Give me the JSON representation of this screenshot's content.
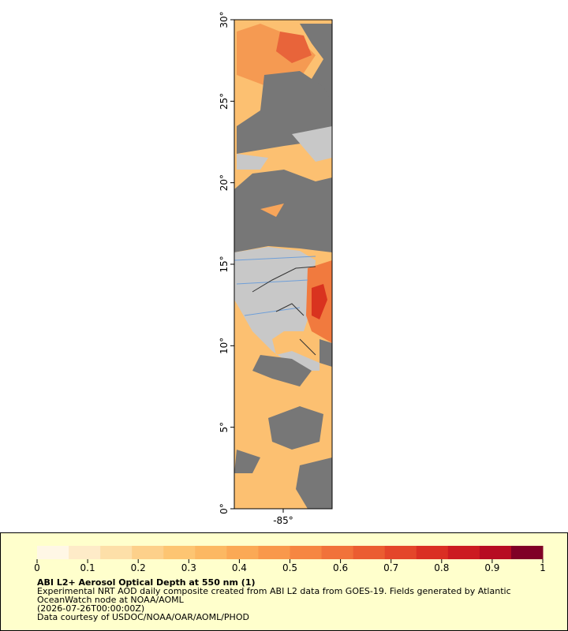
{
  "chart_data": {
    "type": "map",
    "xlim": [
      -88,
      -82
    ],
    "ylim": [
      0,
      30
    ],
    "xticks": [
      {
        "value": -85,
        "label": "-85°"
      }
    ],
    "yticks": [
      {
        "value": 0,
        "label": "0°"
      },
      {
        "value": 5,
        "label": "5°"
      },
      {
        "value": 10,
        "label": "10°"
      },
      {
        "value": 15,
        "label": "15°"
      },
      {
        "value": 20,
        "label": "20°"
      },
      {
        "value": 25,
        "label": "25°"
      },
      {
        "value": 30,
        "label": "30°"
      }
    ],
    "colorbar": {
      "lim": [
        0,
        1
      ],
      "ticks": [
        0,
        0.1,
        0.2,
        0.3,
        0.4,
        0.5,
        0.6,
        0.7,
        0.8,
        0.9,
        1
      ],
      "colors": [
        "#fff7e6",
        "#feebc8",
        "#fddfa8",
        "#fdd08a",
        "#fdc572",
        "#fcb862",
        "#fba955",
        "#f9984b",
        "#f68642",
        "#f1723a",
        "#eb5d31",
        "#e4462a",
        "#da2f23",
        "#cc1b21",
        "#b70c22",
        "#800026"
      ]
    },
    "title": "ABI L2+ Aerosol Optical Depth at 550 nm (1)",
    "description": [
      "Experimental NRT AOD daily composite created from ABI L2 data from GOES-19. Fields generated by Atlantic",
      "OceanWatch node at NOAA/AOML",
      "(2026-07-26T00:00:00Z)",
      "Data courtesy of USDOC/NOAA/OAR/AOML/PHOD"
    ]
  }
}
